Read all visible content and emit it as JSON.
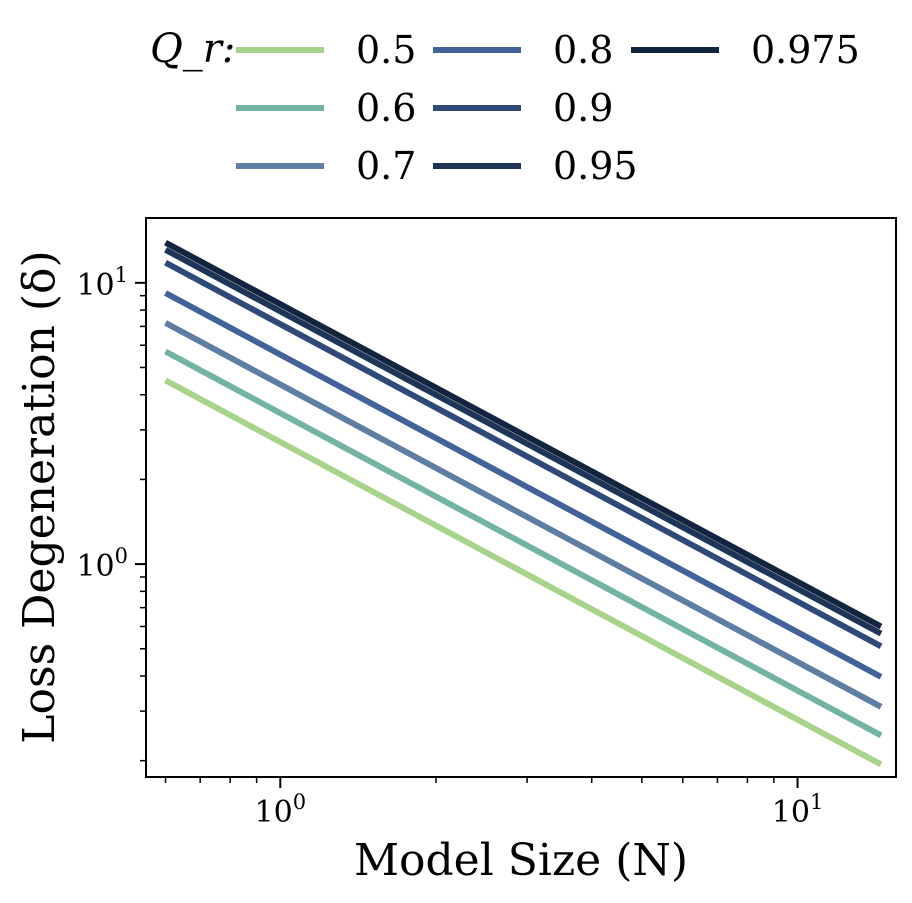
{
  "chart_data": {
    "type": "line",
    "xscale": "log",
    "yscale": "log",
    "xlim": [
      0.55,
      15.5
    ],
    "ylim": [
      0.175,
      17
    ],
    "x": [
      0.6,
      14.5
    ],
    "xlabel": "Model Size (N)",
    "ylabel": "Loss Degeneration (δ)",
    "legend_title": "Q_r:",
    "legend_position": "top",
    "x_ticks": [
      {
        "value": 1,
        "base": "10",
        "exp": "0"
      },
      {
        "value": 10,
        "base": "10",
        "exp": "1"
      }
    ],
    "y_ticks": [
      {
        "value": 1,
        "base": "10",
        "exp": "0"
      },
      {
        "value": 10,
        "base": "10",
        "exp": "1"
      }
    ],
    "series": [
      {
        "name": "0.5",
        "values": [
          4.5,
          0.194
        ],
        "color": "#a8d38a"
      },
      {
        "name": "0.6",
        "values": [
          5.7,
          0.246
        ],
        "color": "#72b3a3"
      },
      {
        "name": "0.7",
        "values": [
          7.2,
          0.311
        ],
        "color": "#5e7ea3"
      },
      {
        "name": "0.8",
        "values": [
          9.2,
          0.397
        ],
        "color": "#41639a"
      },
      {
        "name": "0.9",
        "values": [
          11.8,
          0.51
        ],
        "color": "#2f4a78"
      },
      {
        "name": "0.95",
        "values": [
          13.1,
          0.566
        ],
        "color": "#1f3557"
      },
      {
        "name": "0.975",
        "values": [
          13.9,
          0.6
        ],
        "color": "#13253e"
      }
    ]
  }
}
